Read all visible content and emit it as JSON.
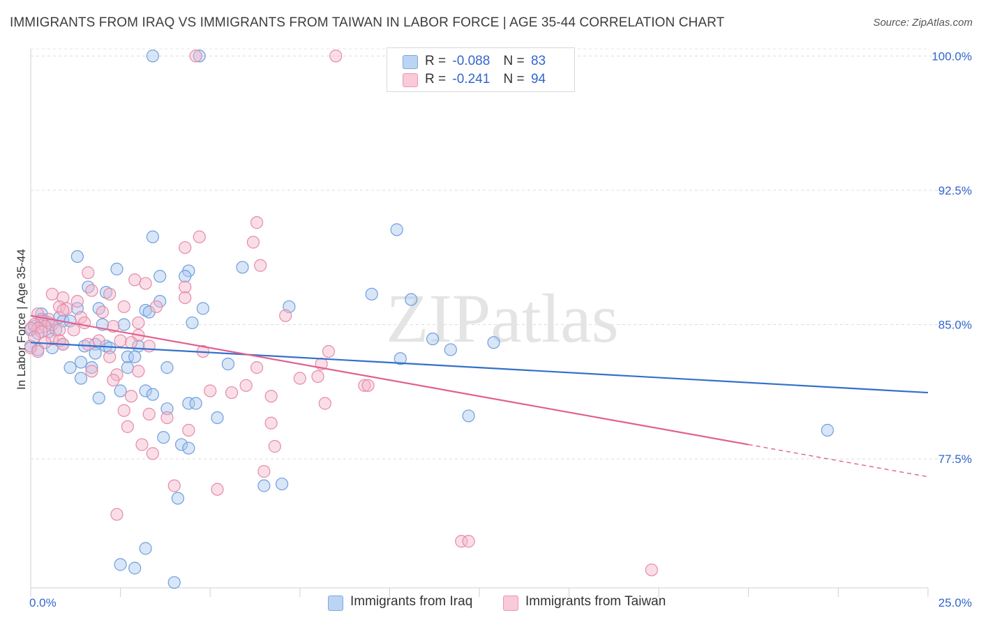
{
  "title": "IMMIGRANTS FROM IRAQ VS IMMIGRANTS FROM TAIWAN IN LABOR FORCE | AGE 35-44 CORRELATION CHART",
  "source": "Source: ZipAtlas.com",
  "watermark": "ZIPatlas",
  "legend": {
    "r_label": "R =",
    "n_label": "N =",
    "rows": [
      {
        "r": "-0.088",
        "n": "83",
        "color": "#a9c8f0"
      },
      {
        "r": "-0.241",
        "n": "94",
        "color": "#f5b6c9"
      }
    ]
  },
  "bottom_legend": [
    {
      "label": "Immigrants from Iraq",
      "color": "#a9c8f0"
    },
    {
      "label": "Immigrants from Taiwan",
      "color": "#f5b6c9"
    }
  ],
  "chart_data": {
    "type": "scatter",
    "ylabel": "In Labor Force | Age 35-44",
    "xlim": [
      0,
      25
    ],
    "ylim": [
      70.3,
      100.4
    ],
    "x_tick_labels": [
      {
        "value": 0,
        "label": "0.0%"
      },
      {
        "value": 25,
        "label": "25.0%"
      }
    ],
    "y_tick_labels": [
      {
        "value": 100.0,
        "label": "100.0%"
      },
      {
        "value": 92.5,
        "label": "92.5%"
      },
      {
        "value": 85.0,
        "label": "85.0%"
      },
      {
        "value": 77.5,
        "label": "77.5%"
      }
    ],
    "grid": true,
    "colors": {
      "iraq_fill": "#a9c8f0",
      "iraq_stroke": "#6e9fdc",
      "iraq_line": "#3370cc",
      "taiwan_fill": "#f5b6c9",
      "taiwan_stroke": "#e68aa8",
      "taiwan_line": "#e0608f"
    },
    "series": [
      {
        "name": "Immigrants from Iraq",
        "r": -0.088,
        "n": 83,
        "trend": {
          "x0": 0,
          "y0": 84.0,
          "x1": 25,
          "y1": 81.2
        },
        "points": [
          [
            3.4,
            100.0
          ],
          [
            4.7,
            100.0
          ],
          [
            10.2,
            90.3
          ],
          [
            3.4,
            89.9
          ],
          [
            1.3,
            88.8
          ],
          [
            2.4,
            88.1
          ],
          [
            5.9,
            88.2
          ],
          [
            4.4,
            88.0
          ],
          [
            3.6,
            87.7
          ],
          [
            4.3,
            87.7
          ],
          [
            1.6,
            87.1
          ],
          [
            2.1,
            86.8
          ],
          [
            9.5,
            86.7
          ],
          [
            3.6,
            86.3
          ],
          [
            10.6,
            86.4
          ],
          [
            7.2,
            86.0
          ],
          [
            1.3,
            85.9
          ],
          [
            4.8,
            85.9
          ],
          [
            1.9,
            85.9
          ],
          [
            3.2,
            85.8
          ],
          [
            3.3,
            85.7
          ],
          [
            0.3,
            85.6
          ],
          [
            0.8,
            85.4
          ],
          [
            0.3,
            85.3
          ],
          [
            0.4,
            85.2
          ],
          [
            0.5,
            85.1
          ],
          [
            0.9,
            85.2
          ],
          [
            1.1,
            85.2
          ],
          [
            4.5,
            85.1
          ],
          [
            2.0,
            85.0
          ],
          [
            2.6,
            85.0
          ],
          [
            0.1,
            84.9
          ],
          [
            0.0,
            84.7
          ],
          [
            0.7,
            84.7
          ],
          [
            0.5,
            84.6
          ],
          [
            0.2,
            84.5
          ],
          [
            11.2,
            84.2
          ],
          [
            12.9,
            84.0
          ],
          [
            0.9,
            83.9
          ],
          [
            1.5,
            83.8
          ],
          [
            1.8,
            83.9
          ],
          [
            2.1,
            83.8
          ],
          [
            3.0,
            83.8
          ],
          [
            0.0,
            83.8
          ],
          [
            0.2,
            83.6
          ],
          [
            0.6,
            83.7
          ],
          [
            2.2,
            83.7
          ],
          [
            11.7,
            83.6
          ],
          [
            1.8,
            83.4
          ],
          [
            2.7,
            83.2
          ],
          [
            2.9,
            83.2
          ],
          [
            10.3,
            83.1
          ],
          [
            1.4,
            82.9
          ],
          [
            5.5,
            82.8
          ],
          [
            1.1,
            82.6
          ],
          [
            1.7,
            82.6
          ],
          [
            2.7,
            82.6
          ],
          [
            3.8,
            82.6
          ],
          [
            1.4,
            82.0
          ],
          [
            3.2,
            81.3
          ],
          [
            2.5,
            81.3
          ],
          [
            3.4,
            81.1
          ],
          [
            1.9,
            80.9
          ],
          [
            4.4,
            80.6
          ],
          [
            4.6,
            80.6
          ],
          [
            3.8,
            80.3
          ],
          [
            12.2,
            79.9
          ],
          [
            5.2,
            79.8
          ],
          [
            22.2,
            79.1
          ],
          [
            3.7,
            78.7
          ],
          [
            4.2,
            78.3
          ],
          [
            4.4,
            78.1
          ],
          [
            6.5,
            76.0
          ],
          [
            7.0,
            76.1
          ],
          [
            4.1,
            75.3
          ],
          [
            3.2,
            72.5
          ],
          [
            2.5,
            71.6
          ],
          [
            2.9,
            71.4
          ],
          [
            4.0,
            70.6
          ]
        ]
      },
      {
        "name": "Immigrants from Taiwan",
        "r": -0.241,
        "n": 94,
        "trend": {
          "x0": 0,
          "y0": 85.5,
          "x1": 20,
          "y1": 78.3,
          "dash_to_x": 25,
          "dash_to_y": 76.5
        },
        "points": [
          [
            4.6,
            100.0
          ],
          [
            8.5,
            100.0
          ],
          [
            11.7,
            100.0
          ],
          [
            6.3,
            90.7
          ],
          [
            4.7,
            89.9
          ],
          [
            6.2,
            89.6
          ],
          [
            4.3,
            89.3
          ],
          [
            6.4,
            88.3
          ],
          [
            1.6,
            87.9
          ],
          [
            2.9,
            87.5
          ],
          [
            3.2,
            87.3
          ],
          [
            4.3,
            87.1
          ],
          [
            1.7,
            86.9
          ],
          [
            2.2,
            86.7
          ],
          [
            0.6,
            86.7
          ],
          [
            0.9,
            86.5
          ],
          [
            4.3,
            86.5
          ],
          [
            1.3,
            86.3
          ],
          [
            0.8,
            86.0
          ],
          [
            2.6,
            86.0
          ],
          [
            3.5,
            86.0
          ],
          [
            1.0,
            85.9
          ],
          [
            0.9,
            85.8
          ],
          [
            2.0,
            85.7
          ],
          [
            0.2,
            85.6
          ],
          [
            7.1,
            85.5
          ],
          [
            1.4,
            85.4
          ],
          [
            0.5,
            85.3
          ],
          [
            0.3,
            85.2
          ],
          [
            1.5,
            85.1
          ],
          [
            3.0,
            85.1
          ],
          [
            0.6,
            85.0
          ],
          [
            0.1,
            85.0
          ],
          [
            0.4,
            84.9
          ],
          [
            2.3,
            84.9
          ],
          [
            0.2,
            84.8
          ],
          [
            0.0,
            84.8
          ],
          [
            0.8,
            84.7
          ],
          [
            1.2,
            84.7
          ],
          [
            0.3,
            84.6
          ],
          [
            3.0,
            84.4
          ],
          [
            0.1,
            84.3
          ],
          [
            0.6,
            84.2
          ],
          [
            1.9,
            84.1
          ],
          [
            2.5,
            84.1
          ],
          [
            0.8,
            84.1
          ],
          [
            0.4,
            84.0
          ],
          [
            2.8,
            84.0
          ],
          [
            1.6,
            83.9
          ],
          [
            3.3,
            83.8
          ],
          [
            0.9,
            83.9
          ],
          [
            0.0,
            83.7
          ],
          [
            0.2,
            83.5
          ],
          [
            4.8,
            83.5
          ],
          [
            8.3,
            83.5
          ],
          [
            2.2,
            83.2
          ],
          [
            8.1,
            82.8
          ],
          [
            6.3,
            82.6
          ],
          [
            3.0,
            82.4
          ],
          [
            1.7,
            82.4
          ],
          [
            2.4,
            82.2
          ],
          [
            7.5,
            82.0
          ],
          [
            8.0,
            82.1
          ],
          [
            2.3,
            81.9
          ],
          [
            6.0,
            81.6
          ],
          [
            9.3,
            81.6
          ],
          [
            9.4,
            81.6
          ],
          [
            5.0,
            81.3
          ],
          [
            5.6,
            81.2
          ],
          [
            6.7,
            81.0
          ],
          [
            2.8,
            81.0
          ],
          [
            8.2,
            80.6
          ],
          [
            2.6,
            80.2
          ],
          [
            3.3,
            80.0
          ],
          [
            3.8,
            79.8
          ],
          [
            6.7,
            79.5
          ],
          [
            2.7,
            79.3
          ],
          [
            4.4,
            79.1
          ],
          [
            3.1,
            78.3
          ],
          [
            6.8,
            78.2
          ],
          [
            3.4,
            77.8
          ],
          [
            6.5,
            76.8
          ],
          [
            4.0,
            76.0
          ],
          [
            5.2,
            75.8
          ],
          [
            2.4,
            74.4
          ],
          [
            12.0,
            72.9
          ],
          [
            12.2,
            72.9
          ],
          [
            17.3,
            71.3
          ]
        ]
      }
    ]
  }
}
